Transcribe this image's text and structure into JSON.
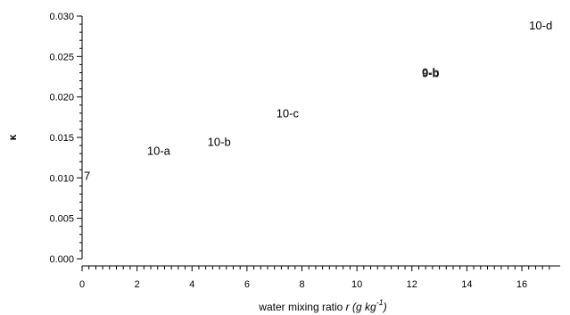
{
  "chart_data": {
    "type": "scatter",
    "title": "",
    "ylabel": "κ",
    "xlabel": {
      "text": "water mixing ratio ",
      "var": "r",
      "unit_open": " (g kg",
      "unit_exp": "-1",
      "unit_close": ")"
    },
    "xlim": [
      0,
      17.2
    ],
    "ylim": [
      0,
      0.03
    ],
    "x_ticks": [
      0,
      2,
      4,
      6,
      8,
      10,
      12,
      14,
      16
    ],
    "y_ticks": [
      "0.000",
      "0.005",
      "0.010",
      "0.015",
      "0.020",
      "0.025",
      "0.030"
    ],
    "points": [
      {
        "label": "7",
        "x": 0,
        "y": 0.0102
      },
      {
        "label": "10-a",
        "x": 2.3,
        "y": 0.0133
      },
      {
        "label": "10-b",
        "x": 4.5,
        "y": 0.0144
      },
      {
        "label": "10-c",
        "x": 7.0,
        "y": 0.0179
      },
      {
        "label": "9-b",
        "x": 12.3,
        "y": 0.0229
      },
      {
        "label": "0-b",
        "x": 12.3,
        "y": 0.023
      },
      {
        "label": "10-d",
        "x": 16.2,
        "y": 0.0288
      }
    ],
    "grid": false,
    "legend": "none"
  }
}
